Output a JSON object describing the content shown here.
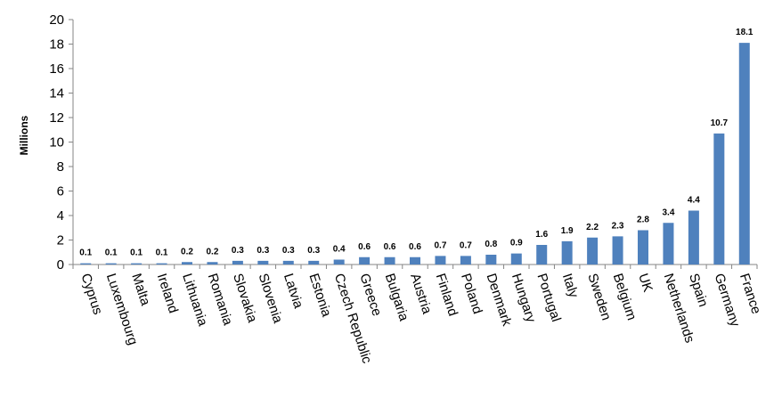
{
  "chart_data": {
    "type": "bar",
    "title": "",
    "xlabel": "",
    "ylabel": "Millions",
    "ylim": [
      0,
      20
    ],
    "yticks": [
      0,
      2,
      4,
      6,
      8,
      10,
      12,
      14,
      16,
      18,
      20
    ],
    "grid": false,
    "bar_color": "#4F81BD",
    "categories": [
      "Cyprus",
      "Luxembourg",
      "Malta",
      "Ireland",
      "Lithuania",
      "Romania",
      "Slovakia",
      "Slovenia",
      "Latvia",
      "Estonia",
      "Czech Republic",
      "Greece",
      "Bulgaria",
      "Austria",
      "Finland",
      "Poland",
      "Denmark",
      "Hungary",
      "Portugal",
      "Italy",
      "Sweden",
      "Belgium",
      "UK",
      "Netherlands",
      "Spain",
      "Germany",
      "France"
    ],
    "values": [
      0.1,
      0.1,
      0.1,
      0.1,
      0.2,
      0.2,
      0.3,
      0.3,
      0.3,
      0.3,
      0.4,
      0.6,
      0.6,
      0.6,
      0.7,
      0.7,
      0.8,
      0.9,
      1.6,
      1.9,
      2.2,
      2.3,
      2.8,
      3.4,
      4.4,
      10.7,
      18.1
    ],
    "value_labels": [
      "0.1",
      "0.1",
      "0.1",
      "0.1",
      "0.2",
      "0.2",
      "0.3",
      "0.3",
      "0.3",
      "0.3",
      "0.4",
      "0.6",
      "0.6",
      "0.6",
      "0.7",
      "0.7",
      "0.8",
      "0.9",
      "1.6",
      "1.9",
      "2.2",
      "2.3",
      "2.8",
      "3.4",
      "4.4",
      "10.7",
      "18.1"
    ]
  }
}
